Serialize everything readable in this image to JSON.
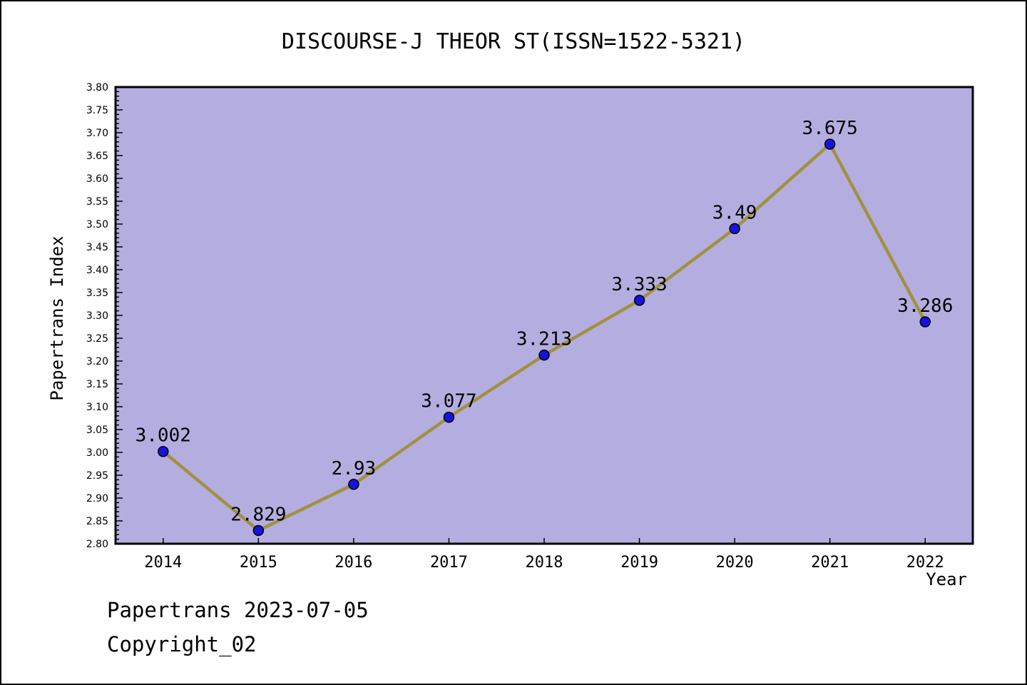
{
  "figure": {
    "title": "DISCOURSE-J THEOR ST(ISSN=1522-5321)",
    "footer_line1": "Papertrans 2023-07-05",
    "footer_line2": "Copyright_02"
  },
  "chart_data": {
    "type": "line",
    "title": "DISCOURSE-J THEOR ST(ISSN=1522-5321)",
    "xlabel": "Year",
    "ylabel": "Papertrans Index",
    "categories": [
      "2014",
      "2015",
      "2016",
      "2017",
      "2018",
      "2019",
      "2020",
      "2021",
      "2022"
    ],
    "values": [
      3.002,
      2.829,
      2.93,
      3.077,
      3.213,
      3.333,
      3.49,
      3.675,
      3.286
    ],
    "point_labels": [
      "3.002",
      "2.829",
      "2.93",
      "3.077",
      "3.213",
      "3.333",
      "3.49",
      "3.675",
      "3.286"
    ],
    "ylim": [
      2.8,
      3.8
    ],
    "y_major_step": 0.05,
    "y_minor_step": 0.01,
    "grid": false,
    "legend": null,
    "colors": {
      "figure_background": "#ffffff",
      "plot_background": "#b4aee0",
      "line": "#a19140",
      "marker_fill": "#1414dd",
      "marker_edge": "#000000",
      "axis": "#000000",
      "text": "#000000"
    }
  }
}
